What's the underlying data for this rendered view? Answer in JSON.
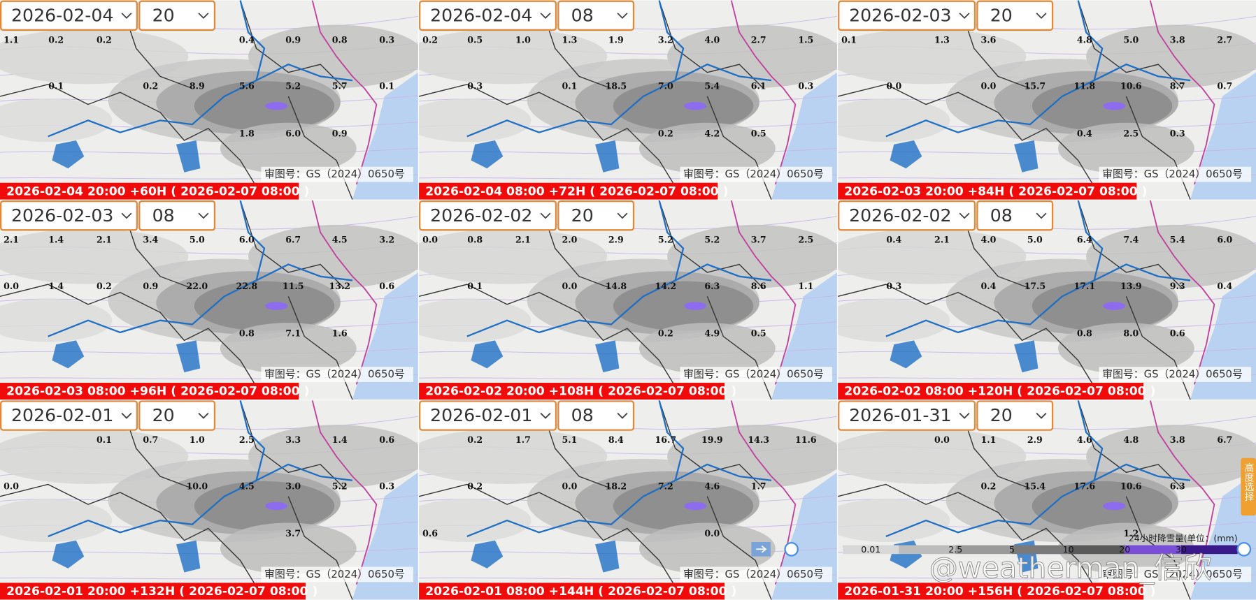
{
  "panels": [
    {
      "date": "2026-02-04",
      "hour": "20",
      "caption": "2026-02-04 20:00 +60H ( 2026-02-07 08:00 )",
      "approval": "审图号：GS（2024）0650号",
      "stations": [
        "1.1",
        "0.2",
        "0.2",
        "0.4",
        "0.9",
        "0.8",
        "0.3",
        "0.1",
        "0.2",
        "8.9",
        "5.6",
        "5.2",
        "5.7",
        "0.1",
        "1.8",
        "6.0",
        "0.9"
      ]
    },
    {
      "date": "2026-02-04",
      "hour": "08",
      "caption": "2026-02-04 08:00 +72H ( 2026-02-07 08:00 )",
      "approval": "审图号：GS（2024）0650号",
      "stations": [
        "0.2",
        "0.5",
        "1.0",
        "1.3",
        "1.9",
        "3.2",
        "4.0",
        "2.7",
        "1.5",
        "0.3",
        "0.1",
        "18.5",
        "7.0",
        "5.4",
        "6.1",
        "0.3",
        "0.2",
        "4.2",
        "0.5"
      ]
    },
    {
      "date": "2026-02-03",
      "hour": "20",
      "caption": "2026-02-03 20:00 +84H ( 2026-02-07 08:00 )",
      "approval": "审图号：GS（2024）0650号",
      "stations": [
        "0.1",
        "1.3",
        "3.6",
        "4.8",
        "5.0",
        "3.8",
        "2.7",
        "0.0",
        "0.0",
        "15.7",
        "11.8",
        "10.6",
        "8.7",
        "0.7",
        "0.4",
        "2.5",
        "0.3"
      ]
    },
    {
      "date": "2026-02-03",
      "hour": "08",
      "caption": "2026-02-03 08:00 +96H ( 2026-02-07 08:00 )",
      "approval": "审图号：GS（2024）0650号",
      "stations": [
        "2.1",
        "1.4",
        "2.1",
        "3.4",
        "5.0",
        "6.0",
        "6.7",
        "4.5",
        "3.2",
        "0.0",
        "1.4",
        "0.2",
        "0.9",
        "22.0",
        "22.8",
        "11.5",
        "13.2",
        "0.6",
        "0.8",
        "7.1",
        "1.6"
      ]
    },
    {
      "date": "2026-02-02",
      "hour": "20",
      "caption": "2026-02-02 20:00 +108H ( 2026-02-07 08:00 )",
      "approval": "审图号：GS（2024）0650号",
      "stations": [
        "0.0",
        "0.8",
        "2.1",
        "2.0",
        "2.9",
        "5.2",
        "5.2",
        "3.7",
        "2.5",
        "0.1",
        "0.0",
        "14.8",
        "14.2",
        "6.3",
        "8.6",
        "1.1",
        "0.2",
        "4.9",
        "0.5"
      ]
    },
    {
      "date": "2026-02-02",
      "hour": "08",
      "caption": "2026-02-02 08:00 +120H ( 2026-02-07 08:00 )",
      "approval": "审图号：GS（2024）0650号",
      "stations": [
        "0.4",
        "2.1",
        "4.0",
        "5.0",
        "6.4",
        "7.4",
        "5.4",
        "6.0",
        "0.3",
        "0.4",
        "17.5",
        "17.1",
        "13.9",
        "9.3",
        "0.4",
        "0.8",
        "8.0",
        "0.6"
      ]
    },
    {
      "date": "2026-02-01",
      "hour": "20",
      "caption": "2026-02-01 20:00 +132H ( 2026-02-07 08:00 )",
      "approval": "审图号：GS（2024）0650号",
      "stations": [
        "0.1",
        "0.7",
        "1.0",
        "2.5",
        "3.3",
        "1.4",
        "0.6",
        "0.0",
        "10.0",
        "4.5",
        "3.0",
        "5.2",
        "0.3",
        "3.7"
      ]
    },
    {
      "date": "2026-02-01",
      "hour": "08",
      "caption": "2026-02-01 08:00 +144H ( 2026-02-07 08:00 )",
      "approval": "审图号：GS（2024）0650号",
      "stations": [
        "0.2",
        "1.7",
        "5.1",
        "8.4",
        "16.7",
        "19.9",
        "14.3",
        "11.6",
        "0.2",
        "0.0",
        "18.2",
        "7.2",
        "4.6",
        "1.7",
        "0.6",
        "0.0"
      ]
    },
    {
      "date": "2026-01-31",
      "hour": "20",
      "caption": "2026-01-31 20:00 +156H ( 2026-02-07 08:00 )",
      "approval": "审图号：GS（2024）0650号",
      "stations": [
        "0.0",
        "1.1",
        "2.9",
        "4.6",
        "4.8",
        "3.8",
        "6.7",
        "0.2",
        "15.4",
        "17.6",
        "10.6",
        "6.3",
        "1.2"
      ]
    }
  ],
  "legend": {
    "title": "24小时降雪量(单位：(mm)",
    "ticks": [
      "0.01",
      "2.5",
      "5",
      "10",
      "20",
      "30"
    ]
  },
  "side_tab": "高度选择",
  "watermark": "@weatherman_信欣"
}
